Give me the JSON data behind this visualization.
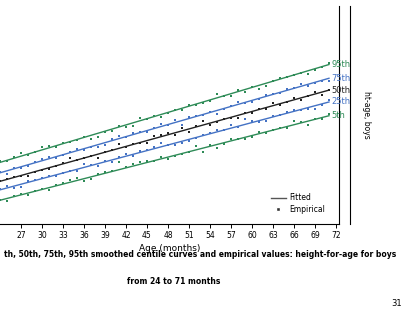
{
  "age_min": 24,
  "age_max": 71,
  "x_ticks": [
    27,
    30,
    33,
    36,
    39,
    42,
    45,
    48,
    51,
    54,
    57,
    60,
    63,
    66,
    69,
    72
  ],
  "xlabel": "Age (months)",
  "ylabel": "ht-age, boys",
  "centiles": [
    {
      "label": "95th",
      "intercept": 97.0,
      "slope": 0.44,
      "color": "#2e8b57",
      "label_color": "#2e8b57"
    },
    {
      "label": "75th",
      "intercept": 94.8,
      "slope": 0.425,
      "color": "#4472c4",
      "label_color": "#4472c4"
    },
    {
      "label": "50th",
      "intercept": 93.0,
      "slope": 0.41,
      "color": "#222222",
      "label_color": "#222222"
    },
    {
      "label": "25th",
      "intercept": 91.2,
      "slope": 0.395,
      "color": "#4472c4",
      "label_color": "#4472c4"
    },
    {
      "label": "5th",
      "intercept": 89.0,
      "slope": 0.38,
      "color": "#2e8b57",
      "label_color": "#2e8b57"
    }
  ],
  "empirical_dot_colors": [
    "#2e8b57",
    "#4472c4",
    "#222222",
    "#4472c4",
    "#2e8b57"
  ],
  "dot_noise_seed": 42,
  "ylim_bottom": 84,
  "ylim_top": 130,
  "caption_line1": "th, 50th, 75th, 95th smoothed centile curves and empirical values: height-for-age for boys",
  "caption_line2": "from 24 to 71 months",
  "figure_number": "31"
}
